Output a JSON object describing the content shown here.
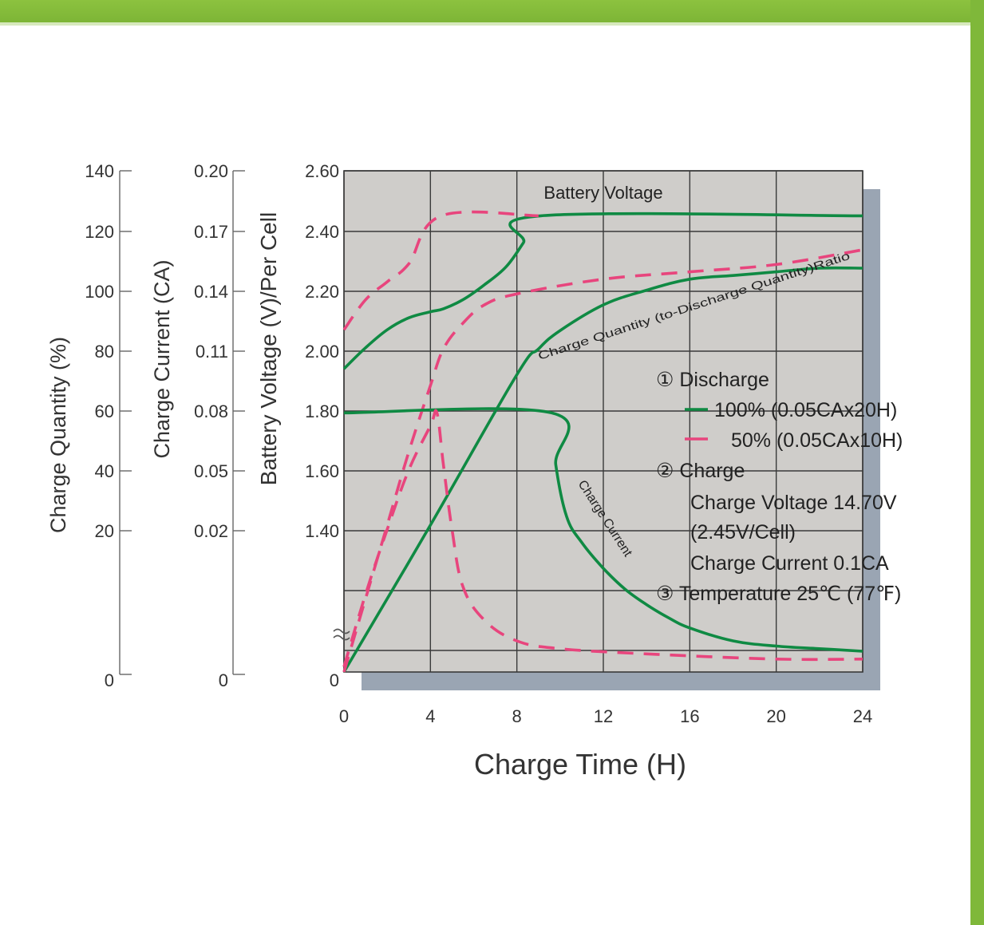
{
  "colors": {
    "accent_green": "#7fb83a",
    "plot_background": "#cfcdca",
    "plot_shadow": "#9aa5b3",
    "grid": "#3a3a3a",
    "series_100": "#0f8a43",
    "series_50": "#e8457d"
  },
  "chart_data": {
    "type": "line",
    "xlabel": "Charge Time (H)",
    "xlim": [
      0,
      24
    ],
    "x_ticks": [
      "0",
      "4",
      "8",
      "12",
      "16",
      "20",
      "24"
    ],
    "y_axes": [
      {
        "label": "Charge Quantity (%)",
        "ticks": [
          {
            "value": 140,
            "label": "140"
          },
          {
            "value": 120,
            "label": "120"
          },
          {
            "value": 100,
            "label": "100"
          },
          {
            "value": 80,
            "label": "80"
          },
          {
            "value": 60,
            "label": "60"
          },
          {
            "value": 40,
            "label": "40"
          },
          {
            "value": 20,
            "label": "20"
          },
          {
            "value": 0,
            "label": "0"
          }
        ]
      },
      {
        "label": "Charge Current (CA)",
        "ticks": [
          {
            "value": 0.2,
            "label": "0.20"
          },
          {
            "value": 0.17,
            "label": "0.17"
          },
          {
            "value": 0.14,
            "label": "0.14"
          },
          {
            "value": 0.11,
            "label": "0.11"
          },
          {
            "value": 0.08,
            "label": "0.08"
          },
          {
            "value": 0.05,
            "label": "0.05"
          },
          {
            "value": 0.02,
            "label": "0.02"
          },
          {
            "value": 0,
            "label": "0"
          }
        ]
      },
      {
        "label": "Battery Voltage (V)/Per Cell",
        "ylim": [
          1.4,
          2.6
        ],
        "axis_break": true,
        "ticks": [
          {
            "value": 2.6,
            "label": "2.60"
          },
          {
            "value": 2.4,
            "label": "2.40"
          },
          {
            "value": 2.2,
            "label": "2.20"
          },
          {
            "value": 2.0,
            "label": "2.00"
          },
          {
            "value": 1.8,
            "label": "1.80"
          },
          {
            "value": 1.6,
            "label": "1.60"
          },
          {
            "value": 1.4,
            "label": "1.40"
          },
          {
            "value": 0,
            "label": "0"
          }
        ]
      }
    ],
    "grid": true,
    "annotations": {
      "battery_voltage": "Battery Voltage",
      "charge_quantity": "Charge Quantity (to-Discharge Quantity)Ratio",
      "charge_current": "Charge Current"
    },
    "legend": {
      "position": "right-middle",
      "discharge_title": "① Discharge",
      "series_100": "100% (0.05CAx20H)",
      "series_50": "50% (0.05CAx10H)",
      "charge_title": "② Charge",
      "charge_voltage": "Charge Voltage 14.70V",
      "per_cell": "(2.45V/Cell)",
      "charge_current": "Charge Current 0.1CA",
      "temperature": "③ Temperature 25℃ (77℉)"
    },
    "series": [
      {
        "name": "100% (0.05CAx20H)",
        "quantity": "battery_voltage",
        "axis": 2,
        "style": "solid",
        "points": [
          [
            0,
            1.94
          ],
          [
            1,
            2.01
          ],
          [
            2,
            2.07
          ],
          [
            3,
            2.11
          ],
          [
            4,
            2.13
          ],
          [
            4.6,
            2.14
          ],
          [
            5.5,
            2.17
          ],
          [
            6.5,
            2.22
          ],
          [
            7.5,
            2.28
          ],
          [
            8.3,
            2.36
          ],
          [
            9.1,
            2.45
          ],
          [
            24,
            2.45
          ]
        ]
      },
      {
        "name": "50% (0.05CAx10H)",
        "quantity": "battery_voltage",
        "axis": 2,
        "style": "dashed",
        "points": [
          [
            0,
            2.07
          ],
          [
            1,
            2.17
          ],
          [
            2,
            2.23
          ],
          [
            3,
            2.29
          ],
          [
            4.5,
            2.45
          ],
          [
            9,
            2.45
          ]
        ]
      },
      {
        "name": "100% (0.05CAx20H)",
        "quantity": "charge_quantity",
        "axis": 0,
        "style": "solid",
        "points": [
          [
            0,
            0
          ],
          [
            4,
            40
          ],
          [
            8,
            81
          ],
          [
            9,
            88
          ],
          [
            10,
            93
          ],
          [
            12,
            100
          ],
          [
            14,
            104
          ],
          [
            16,
            107
          ],
          [
            18,
            108
          ],
          [
            20,
            109
          ],
          [
            22,
            110
          ],
          [
            24,
            110
          ]
        ]
      },
      {
        "name": "50% (0.05CAx10H)",
        "quantity": "charge_quantity",
        "axis": 0,
        "style": "dashed",
        "points": [
          [
            0,
            0
          ],
          [
            1,
            20
          ],
          [
            2,
            40
          ],
          [
            3,
            60
          ],
          [
            4,
            78
          ],
          [
            4.6,
            88
          ],
          [
            5.5,
            95
          ],
          [
            6.5,
            100
          ],
          [
            8,
            103
          ],
          [
            12,
            107
          ],
          [
            16,
            109
          ],
          [
            20,
            111
          ],
          [
            24,
            115
          ]
        ]
      },
      {
        "name": "100% (0.05CAx20H)",
        "quantity": "charge_current",
        "axis": 1,
        "style": "solid",
        "points": [
          [
            0,
            0.1
          ],
          [
            9.6,
            0.1
          ],
          [
            9.8,
            0.08
          ],
          [
            10.3,
            0.06
          ],
          [
            11,
            0.05
          ],
          [
            12,
            0.04
          ],
          [
            13,
            0.032
          ],
          [
            14,
            0.026
          ],
          [
            15,
            0.021
          ],
          [
            16,
            0.017
          ],
          [
            18,
            0.012
          ],
          [
            20,
            0.01
          ],
          [
            22,
            0.009
          ],
          [
            24,
            0.008
          ]
        ]
      },
      {
        "name": "50% (0.05CAx10H)",
        "quantity": "charge_current",
        "axis": 1,
        "style": "dashed",
        "points": [
          [
            0,
            0.002
          ],
          [
            1,
            0.03
          ],
          [
            2,
            0.055
          ],
          [
            3,
            0.078
          ],
          [
            4,
            0.095
          ],
          [
            4.3,
            0.1
          ],
          [
            4.6,
            0.08
          ],
          [
            5,
            0.055
          ],
          [
            5.5,
            0.033
          ],
          [
            6.5,
            0.02
          ],
          [
            8,
            0.012
          ],
          [
            10,
            0.009
          ],
          [
            14,
            0.007
          ],
          [
            20,
            0.005
          ],
          [
            24,
            0.005
          ]
        ]
      }
    ]
  }
}
